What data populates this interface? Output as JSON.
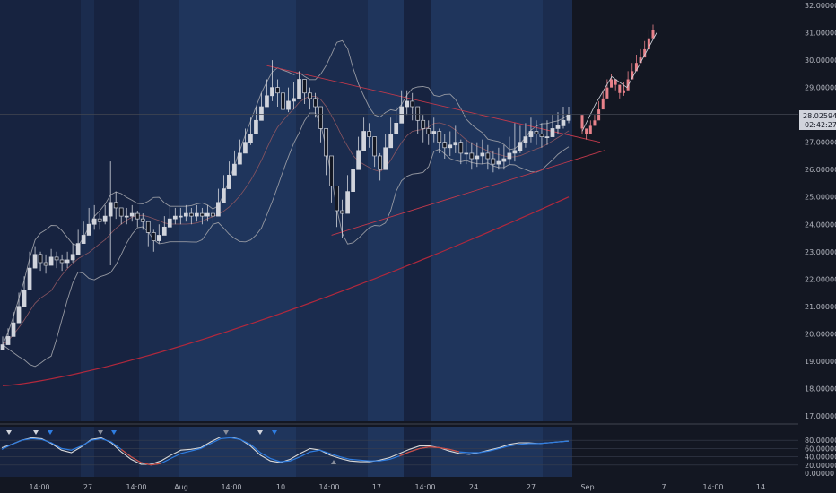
{
  "colors": {
    "background": "#131722",
    "session_blue_dark": "#172340",
    "session_blue_mid": "#1b2c4e",
    "session_blue_light": "#1f355c",
    "candle": "#d1d4dc",
    "forecast_candle": "#e8828a",
    "bollinger": "#9598a1",
    "ma_red": "#b2283c",
    "trendline": "#c0394b",
    "stoch_k": "#2f7de1",
    "stoch_d": "#d9d9d9",
    "stoch_red": "#d24a3a",
    "axis_text": "#b2b5be",
    "price_tag_bg": "#d1d4dc"
  },
  "chart_data": [
    {
      "type": "candlestick",
      "title": "",
      "ylim": [
        16.8,
        32.2
      ],
      "y_ticks": [
        "17.00000",
        "18.00000",
        "19.00000",
        "20.00000",
        "21.00000",
        "22.00000",
        "23.00000",
        "24.00000",
        "25.00000",
        "26.00000",
        "27.00000",
        "28.00000",
        "29.00000",
        "30.00000",
        "31.00000",
        "32.00000"
      ],
      "x_ticks": [
        "14:00",
        "27",
        "14:00",
        "Aug",
        "14:00",
        "10",
        "14:00",
        "17",
        "14:00",
        "24",
        "27",
        "Sep",
        "7",
        "14:00",
        "14"
      ],
      "current_price": "28.02594",
      "countdown": "02:42:27",
      "grid": false,
      "series": [
        {
          "key": "close",
          "values": [
            19.6,
            19.9,
            20.4,
            21.0,
            21.6,
            22.4,
            22.9,
            22.6,
            22.5,
            22.8,
            22.7,
            22.6,
            22.7,
            22.9,
            23.3,
            23.6,
            24.0,
            24.2,
            24.1,
            24.3,
            24.8,
            24.6,
            24.3,
            24.3,
            24.4,
            24.2,
            24.1,
            23.7,
            23.4,
            23.6,
            23.9,
            24.2,
            24.3,
            24.3,
            24.4,
            24.3,
            24.4,
            24.3,
            24.4,
            24.3,
            24.8,
            25.3,
            25.8,
            26.2,
            26.6,
            27.0,
            27.3,
            27.8,
            28.3,
            28.7,
            29.0,
            28.8,
            28.2,
            28.5,
            28.6,
            29.3,
            28.8,
            28.6,
            28.3,
            27.5,
            26.5,
            25.4,
            24.5,
            24.4,
            25.2,
            26.0,
            26.7,
            27.4,
            27.2,
            26.5,
            26.0,
            26.8,
            27.3,
            27.7,
            28.3,
            28.5,
            28.3,
            27.8,
            27.5,
            27.3,
            27.4,
            27.0,
            26.8,
            26.9,
            27.0,
            26.6,
            26.6,
            26.4,
            26.5,
            26.6,
            26.4,
            26.2,
            26.3,
            26.4,
            26.6,
            26.7,
            27.0,
            27.2,
            27.4,
            27.3,
            27.2,
            27.2,
            27.5,
            27.6,
            27.8,
            28.0
          ],
          "highs": [
            19.9,
            20.2,
            20.8,
            21.5,
            22.1,
            23.0,
            23.2,
            23.0,
            22.9,
            23.1,
            23.0,
            22.9,
            23.0,
            23.3,
            23.8,
            24.1,
            24.6,
            24.7,
            24.4,
            24.7,
            26.3,
            25.2,
            24.6,
            24.6,
            24.7,
            24.5,
            24.4,
            24.1,
            23.8,
            24.0,
            24.3,
            24.7,
            24.6,
            24.6,
            24.7,
            24.6,
            24.7,
            24.6,
            24.7,
            24.6,
            25.3,
            25.8,
            26.3,
            26.7,
            27.1,
            27.5,
            27.9,
            28.3,
            28.8,
            29.3,
            30.0,
            29.3,
            28.8,
            29.0,
            29.2,
            29.6,
            29.2,
            29.0,
            28.8,
            28.1,
            27.2,
            26.1,
            25.2,
            24.9,
            25.8,
            26.6,
            27.2,
            27.9,
            27.7,
            27.1,
            26.6,
            27.3,
            27.9,
            28.3,
            28.9,
            28.9,
            28.8,
            28.3,
            28.0,
            27.8,
            27.9,
            27.5,
            27.3,
            27.4,
            27.6,
            27.1,
            27.1,
            27.0,
            27.0,
            27.1,
            26.9,
            26.7,
            26.8,
            26.9,
            27.2,
            27.7,
            27.6,
            27.7,
            27.9,
            27.8,
            27.7,
            27.8,
            28.0,
            28.1,
            28.3,
            28.3
          ],
          "lows": [
            19.4,
            19.6,
            20.0,
            20.7,
            21.2,
            22.0,
            22.5,
            22.3,
            22.2,
            22.5,
            22.4,
            22.3,
            22.4,
            22.6,
            23.0,
            23.3,
            23.7,
            23.8,
            23.8,
            24.0,
            22.5,
            24.2,
            24.0,
            24.0,
            24.1,
            23.9,
            23.8,
            23.2,
            23.0,
            23.3,
            23.6,
            23.9,
            24.0,
            24.0,
            24.1,
            24.0,
            24.1,
            24.0,
            24.1,
            24.0,
            24.4,
            24.9,
            25.4,
            25.8,
            26.2,
            26.6,
            26.9,
            27.4,
            27.9,
            28.3,
            28.5,
            28.3,
            27.8,
            28.1,
            28.2,
            28.8,
            28.4,
            28.2,
            27.9,
            27.0,
            25.8,
            24.8,
            23.9,
            23.5,
            24.8,
            25.6,
            26.2,
            26.9,
            26.8,
            26.1,
            25.6,
            26.3,
            26.9,
            27.3,
            27.8,
            28.0,
            27.8,
            27.3,
            27.0,
            26.9,
            27.0,
            26.6,
            26.4,
            26.5,
            26.6,
            26.2,
            26.2,
            26.0,
            26.1,
            26.2,
            26.0,
            25.9,
            26.0,
            26.0,
            26.2,
            26.3,
            26.6,
            26.8,
            27.0,
            26.9,
            26.8,
            26.9,
            27.2,
            27.3,
            27.5,
            27.7
          ]
        },
        {
          "key": "forecast",
          "values": [
            27.5,
            27.3,
            27.6,
            27.8,
            28.2,
            28.6,
            29.0,
            29.3,
            29.1,
            28.8,
            28.9,
            29.3,
            29.6,
            29.9,
            30.1,
            30.4,
            30.8,
            31.1
          ],
          "highs": [
            27.8,
            27.5,
            27.8,
            28.0,
            28.5,
            28.9,
            29.3,
            29.5,
            29.3,
            29.1,
            29.2,
            29.6,
            29.9,
            30.2,
            30.4,
            30.7,
            31.1,
            31.3
          ],
          "lows": [
            27.3,
            27.1,
            27.4,
            27.6,
            28.0,
            28.4,
            28.8,
            29.1,
            28.9,
            28.6,
            28.7,
            29.1,
            29.4,
            29.7,
            29.9,
            30.2,
            30.6,
            30.9
          ]
        }
      ]
    },
    {
      "type": "line",
      "title": "",
      "ylim": [
        0,
        100
      ],
      "y_ticks": [
        "80.00000",
        "60.00000",
        "40.00000",
        "20.00000",
        "0.00000"
      ],
      "series": [
        {
          "key": "k",
          "values": [
            58,
            70,
            80,
            84,
            82,
            74,
            60,
            56,
            66,
            80,
            84,
            76,
            58,
            40,
            26,
            20,
            24,
            36,
            48,
            54,
            60,
            72,
            84,
            86,
            82,
            70,
            50,
            36,
            28,
            30,
            40,
            52,
            56,
            48,
            40,
            34,
            32,
            30,
            30,
            34,
            42,
            52,
            60,
            64,
            62,
            58,
            52,
            50,
            50,
            54,
            60,
            66,
            70,
            72,
            72,
            74,
            76,
            78
          ]
        },
        {
          "key": "d",
          "values": [
            62,
            70,
            80,
            86,
            84,
            72,
            56,
            50,
            64,
            82,
            86,
            74,
            52,
            34,
            22,
            22,
            30,
            44,
            56,
            58,
            62,
            76,
            88,
            88,
            82,
            66,
            44,
            30,
            26,
            34,
            48,
            60,
            56,
            44,
            36,
            30,
            28,
            28,
            32,
            38,
            48,
            58,
            66,
            66,
            62,
            54,
            48,
            46,
            50,
            56,
            62,
            70,
            74,
            74,
            72,
            74,
            76,
            78
          ]
        }
      ]
    }
  ]
}
